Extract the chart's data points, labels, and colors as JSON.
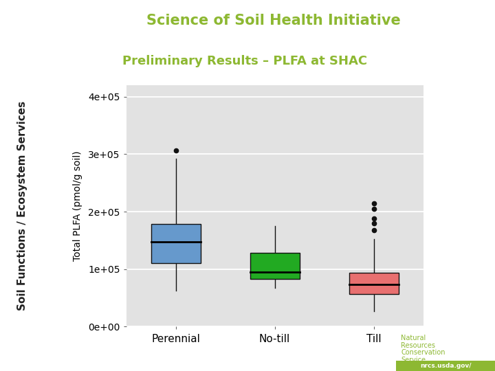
{
  "title_main": "Science of Soil Health Initiative",
  "title_sub": "Preliminary Results – PLFA at SHAC",
  "ylabel": "Total PLFA (pmol/g soil)",
  "side_label": "Soil Functions / Ecosystem Services",
  "bg_header": "#2ab8ca",
  "title_main_color": "#8db832",
  "title_sub_color": "#8db832",
  "plot_bg": "#e2e2e2",
  "fig_bg": "white",
  "nrcs_text_color": "#8db832",
  "categories": [
    "Perennial",
    "No-till",
    "Till"
  ],
  "box_colors": [
    "#6699cc",
    "#22aa22",
    "#e87070"
  ],
  "box_data": [
    {
      "label": "Perennial",
      "q1": 110000,
      "median": 148000,
      "q3": 178000,
      "whislo": 62000,
      "whishi": 292000,
      "fliers": [
        307000
      ]
    },
    {
      "label": "No-till",
      "q1": 83000,
      "median": 95000,
      "q3": 128000,
      "whislo": 67000,
      "whishi": 175000,
      "fliers": []
    },
    {
      "label": "Till",
      "q1": 56000,
      "median": 73000,
      "q3": 94000,
      "whislo": 27000,
      "whishi": 152000,
      "fliers": [
        168000,
        180000,
        188000,
        205000,
        215000
      ]
    }
  ],
  "ylim": [
    0,
    420000
  ],
  "yticks": [
    0,
    100000,
    200000,
    300000,
    400000
  ],
  "ytick_labels": [
    "0e+00",
    "1e+05",
    "2e+05",
    "3e+05",
    "4e+05"
  ]
}
